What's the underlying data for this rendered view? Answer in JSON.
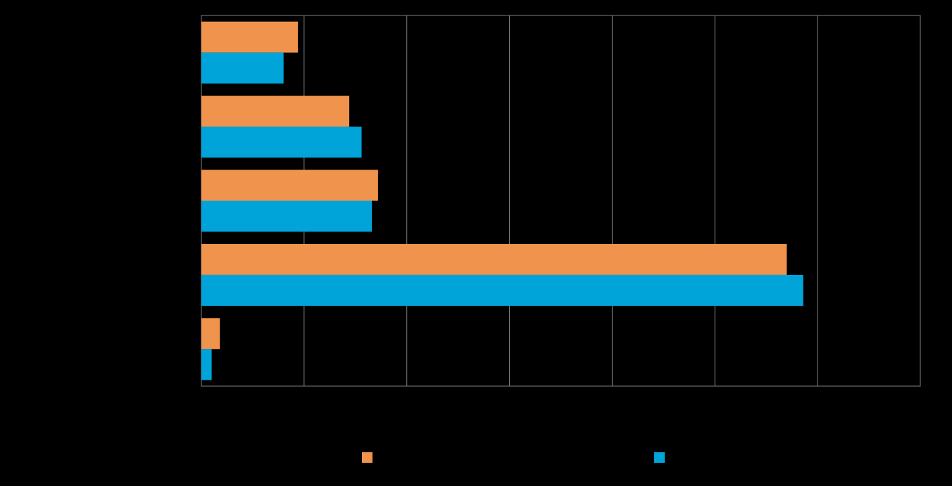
{
  "chart_data": {
    "type": "bar",
    "orientation": "horizontal",
    "title": "",
    "xlabel": "",
    "ylabel": "",
    "categories": [
      "",
      "",
      "",
      "",
      ""
    ],
    "series": [
      {
        "values": [
          4.7,
          7.2,
          8.6,
          28.5,
          0.9
        ],
        "color": "#f0944d"
      },
      {
        "values": [
          4.0,
          7.8,
          8.3,
          29.3,
          0.5
        ],
        "color": "#00a4d9"
      }
    ],
    "xlim": [
      0,
      35
    ],
    "x_tick_step": 5,
    "grid": true,
    "legend_position": "bottom",
    "background": "#000000",
    "gridline_color": "#808080"
  }
}
